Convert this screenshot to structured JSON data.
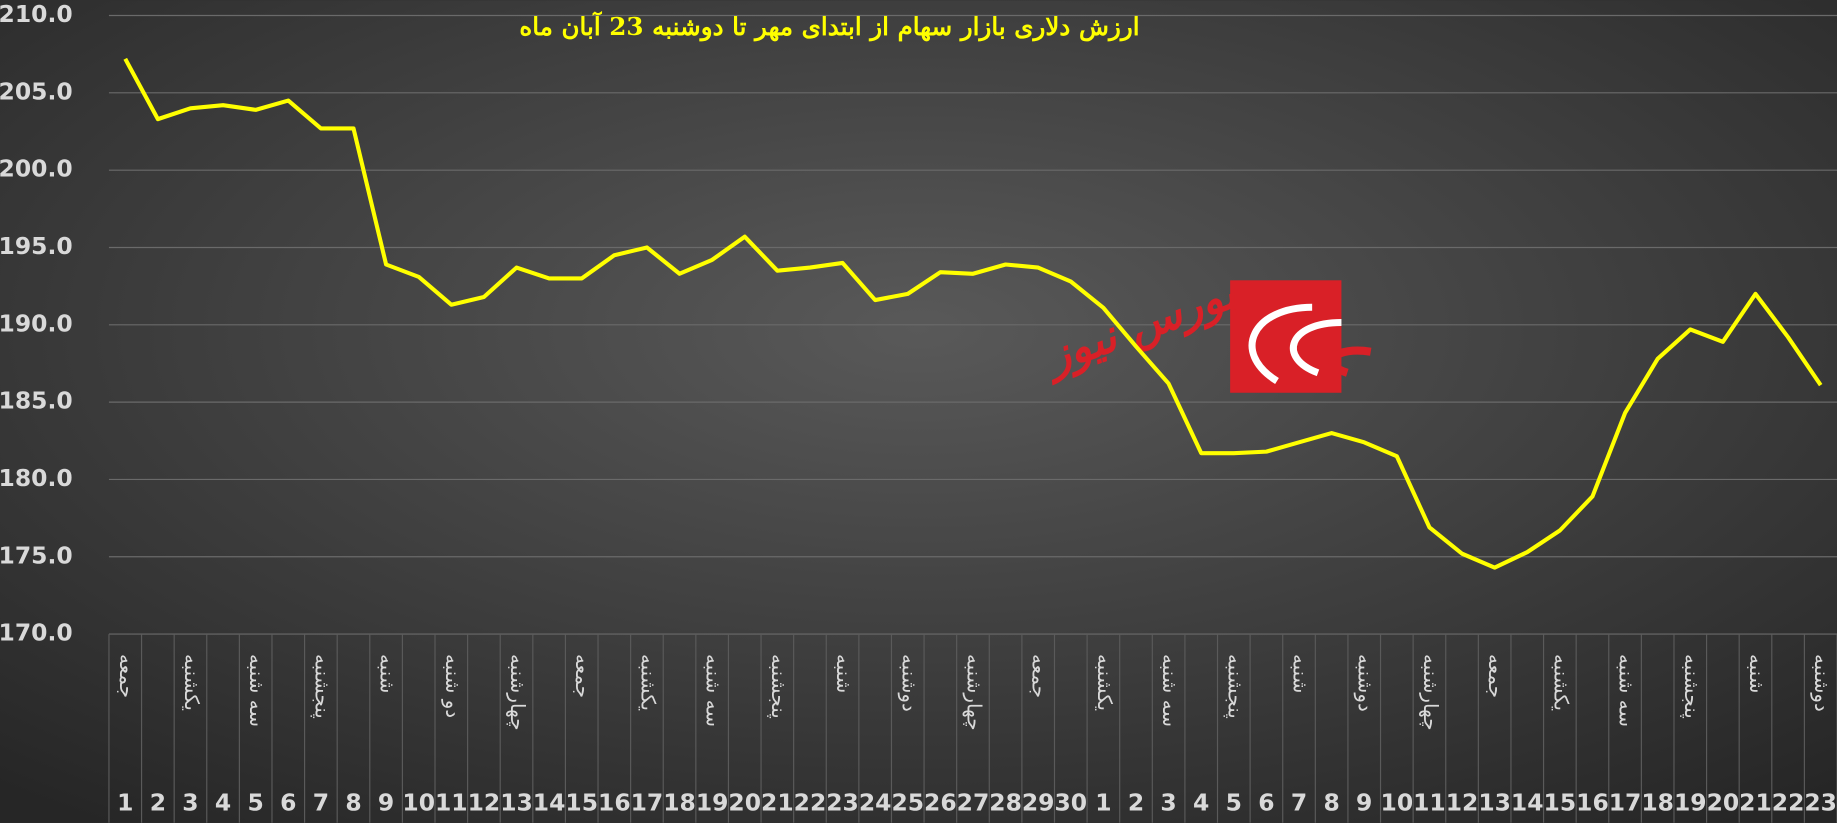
{
  "chart_data": {
    "type": "line",
    "title": "ارزش دلاری بازار سهام از ابتدای مهر تا دوشنبه 23 آبان ماه",
    "watermark": "بورس نیوز",
    "categories": [
      "1",
      "2",
      "3",
      "4",
      "5",
      "6",
      "7",
      "8",
      "9",
      "10",
      "11",
      "12",
      "13",
      "14",
      "15",
      "16",
      "17",
      "18",
      "19",
      "20",
      "21",
      "22",
      "23",
      "24",
      "25",
      "26",
      "27",
      "28",
      "29",
      "30",
      "1",
      "2",
      "3",
      "4",
      "5",
      "6",
      "7",
      "8",
      "9",
      "10",
      "11",
      "12",
      "13",
      "14",
      "15",
      "16",
      "17",
      "18",
      "19",
      "20",
      "21",
      "22",
      "23"
    ],
    "weekday_labels": [
      "جمعه",
      null,
      "یکشنبه",
      null,
      "سه شنبه",
      null,
      "پنجشنبه",
      null,
      "شنبه",
      null,
      "دو شنبه",
      null,
      "چهارشنبه",
      null,
      "جمعه",
      null,
      "یکشنبه",
      null,
      "سه شنبه",
      null,
      "پنجشنبه",
      null,
      "شنبه",
      null,
      "دوشنبه",
      null,
      "چهارشنبه",
      null,
      "جمعه",
      null,
      "یکشنبه",
      null,
      "سه شنبه",
      null,
      "پنجشنبه",
      null,
      "شنبه",
      null,
      "دوشنبه",
      null,
      "چهارشنبه",
      null,
      "جمعه",
      null,
      "یکشنبه",
      null,
      "سه شنبه",
      null,
      "پنجشنبه",
      null,
      "شنبه",
      null,
      "دوشنبه"
    ],
    "series": [
      {
        "color": "#ffff00",
        "values": [
          207.2,
          203.3,
          204.0,
          204.2,
          203.9,
          204.5,
          202.7,
          202.7,
          193.9,
          193.1,
          191.3,
          191.8,
          193.7,
          193.0,
          193.0,
          194.5,
          195.0,
          193.3,
          194.2,
          195.7,
          193.5,
          193.7,
          194.0,
          191.6,
          192.0,
          193.4,
          193.3,
          193.9,
          193.7,
          192.8,
          191.1,
          188.6,
          186.2,
          181.7,
          181.7,
          181.8,
          182.4,
          183.0,
          182.4,
          181.5,
          176.9,
          175.2,
          174.3,
          175.3,
          176.7,
          178.9,
          184.3,
          187.8,
          189.7,
          188.9,
          192.0,
          189.2,
          186.1
        ]
      }
    ],
    "ylim": [
      170,
      210
    ],
    "yticks": [
      {
        "value": 170,
        "label": "170.0"
      },
      {
        "value": 175,
        "label": "175.0"
      },
      {
        "value": 180,
        "label": "180.0"
      },
      {
        "value": 185,
        "label": "185.0"
      },
      {
        "value": 190,
        "label": "190.0"
      },
      {
        "value": 195,
        "label": "195.0"
      },
      {
        "value": 200,
        "label": "200.0"
      },
      {
        "value": 205,
        "label": "205.0"
      },
      {
        "value": 210,
        "label": "210.0"
      }
    ],
    "grid": true
  }
}
